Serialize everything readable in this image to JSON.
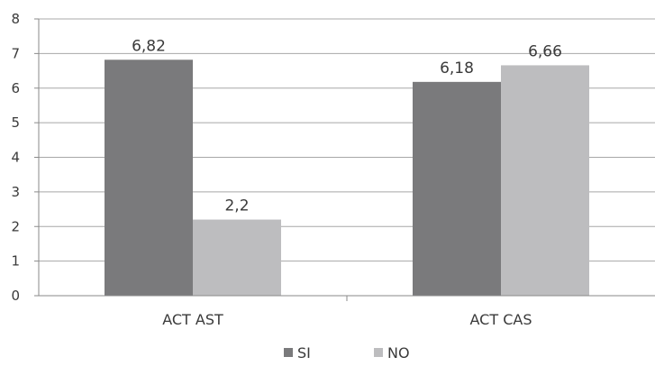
{
  "chart_data": {
    "type": "bar",
    "categories": [
      "ACT AST",
      "ACT CAS"
    ],
    "series": [
      {
        "name": "SI",
        "values": [
          6.82,
          6.18
        ],
        "labels": [
          "6,82",
          "6,18"
        ],
        "color": "#7a7a7c"
      },
      {
        "name": "NO",
        "values": [
          2.2,
          6.66
        ],
        "labels": [
          "2,2",
          "6,66"
        ],
        "color": "#bdbdbf"
      }
    ],
    "title": "",
    "xlabel": "",
    "ylabel": "",
    "ylim": [
      0,
      8
    ],
    "yticks": [
      0,
      1,
      2,
      3,
      4,
      5,
      6,
      7,
      8
    ],
    "grid": true,
    "legend": "bottom"
  }
}
